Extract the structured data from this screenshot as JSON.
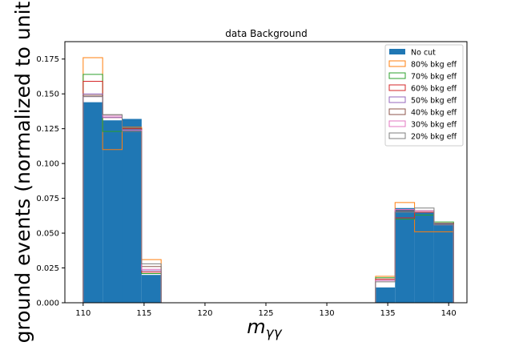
{
  "chart_data": {
    "type": "bar",
    "title": "data Background",
    "xlabel": "m",
    "xlabel_subscript": "γγ",
    "ylabel": "ground events (normalized to unit",
    "xlim": [
      108.5,
      141.5
    ],
    "ylim": [
      0,
      0.1875
    ],
    "xticks": [
      110,
      115,
      120,
      125,
      130,
      135,
      140
    ],
    "yticks": [
      0.0,
      0.025,
      0.05,
      0.075,
      0.1,
      0.125,
      0.15,
      0.175
    ],
    "ytick_labels": [
      "0.000",
      "0.025",
      "0.050",
      "0.075",
      "0.100",
      "0.125",
      "0.150",
      "0.175"
    ],
    "bin_edges": [
      110,
      111.6,
      113.2,
      114.8,
      116.4,
      118,
      119.6,
      121.2,
      122.8,
      124.4,
      126,
      127.6,
      129.2,
      130.8,
      132.4,
      134,
      135.6,
      137.2,
      138.8,
      140.4
    ],
    "legend_position": "top-right",
    "grid": false,
    "series": [
      {
        "name": "No cut",
        "kind": "filled",
        "color": "#1f77b4",
        "values": [
          0.144,
          0.131,
          0.132,
          0.02,
          0,
          0,
          0,
          0,
          0,
          0,
          0,
          0,
          0,
          0,
          0,
          0.011,
          0.068,
          0.065,
          0.057
        ]
      },
      {
        "name": "80% bkg eff",
        "kind": "step",
        "color": "#ff7f0e",
        "values": [
          0.176,
          0.11,
          0.126,
          0.031,
          0,
          0,
          0,
          0,
          0,
          0,
          0,
          0,
          0,
          0,
          0,
          0.019,
          0.072,
          0.051,
          0.051
        ]
      },
      {
        "name": "70% bkg eff",
        "kind": "step",
        "color": "#2ca02c",
        "values": [
          0.164,
          0.123,
          0.125,
          0.021,
          0,
          0,
          0,
          0,
          0,
          0,
          0,
          0,
          0,
          0,
          0,
          0.018,
          0.06,
          0.063,
          0.058
        ]
      },
      {
        "name": "60% bkg eff",
        "kind": "step",
        "color": "#d62728",
        "values": [
          0.159,
          0.133,
          0.125,
          0.022,
          0,
          0,
          0,
          0,
          0,
          0,
          0,
          0,
          0,
          0,
          0,
          0.017,
          0.061,
          0.065,
          0.057
        ]
      },
      {
        "name": "50% bkg eff",
        "kind": "step",
        "color": "#9467bd",
        "values": [
          0.15,
          0.133,
          0.124,
          0.023,
          0,
          0,
          0,
          0,
          0,
          0,
          0,
          0,
          0,
          0,
          0,
          0.016,
          0.066,
          0.066,
          0.056
        ]
      },
      {
        "name": "40% bkg eff",
        "kind": "step",
        "color": "#8c564b",
        "values": [
          0.149,
          0.135,
          0.123,
          0.026,
          0,
          0,
          0,
          0,
          0,
          0,
          0,
          0,
          0,
          0,
          0,
          0.016,
          0.066,
          0.066,
          0.057
        ]
      },
      {
        "name": "30% bkg eff",
        "kind": "step",
        "color": "#e377c2",
        "values": [
          0.148,
          0.134,
          0.124,
          0.024,
          0,
          0,
          0,
          0,
          0,
          0,
          0,
          0,
          0,
          0,
          0,
          0.016,
          0.067,
          0.066,
          0.056
        ]
      },
      {
        "name": "20% bkg eff",
        "kind": "step",
        "color": "#7f7f7f",
        "values": [
          0.148,
          0.135,
          0.123,
          0.028,
          0,
          0,
          0,
          0,
          0,
          0,
          0,
          0,
          0,
          0,
          0,
          0.015,
          0.065,
          0.068,
          0.056
        ]
      }
    ]
  }
}
